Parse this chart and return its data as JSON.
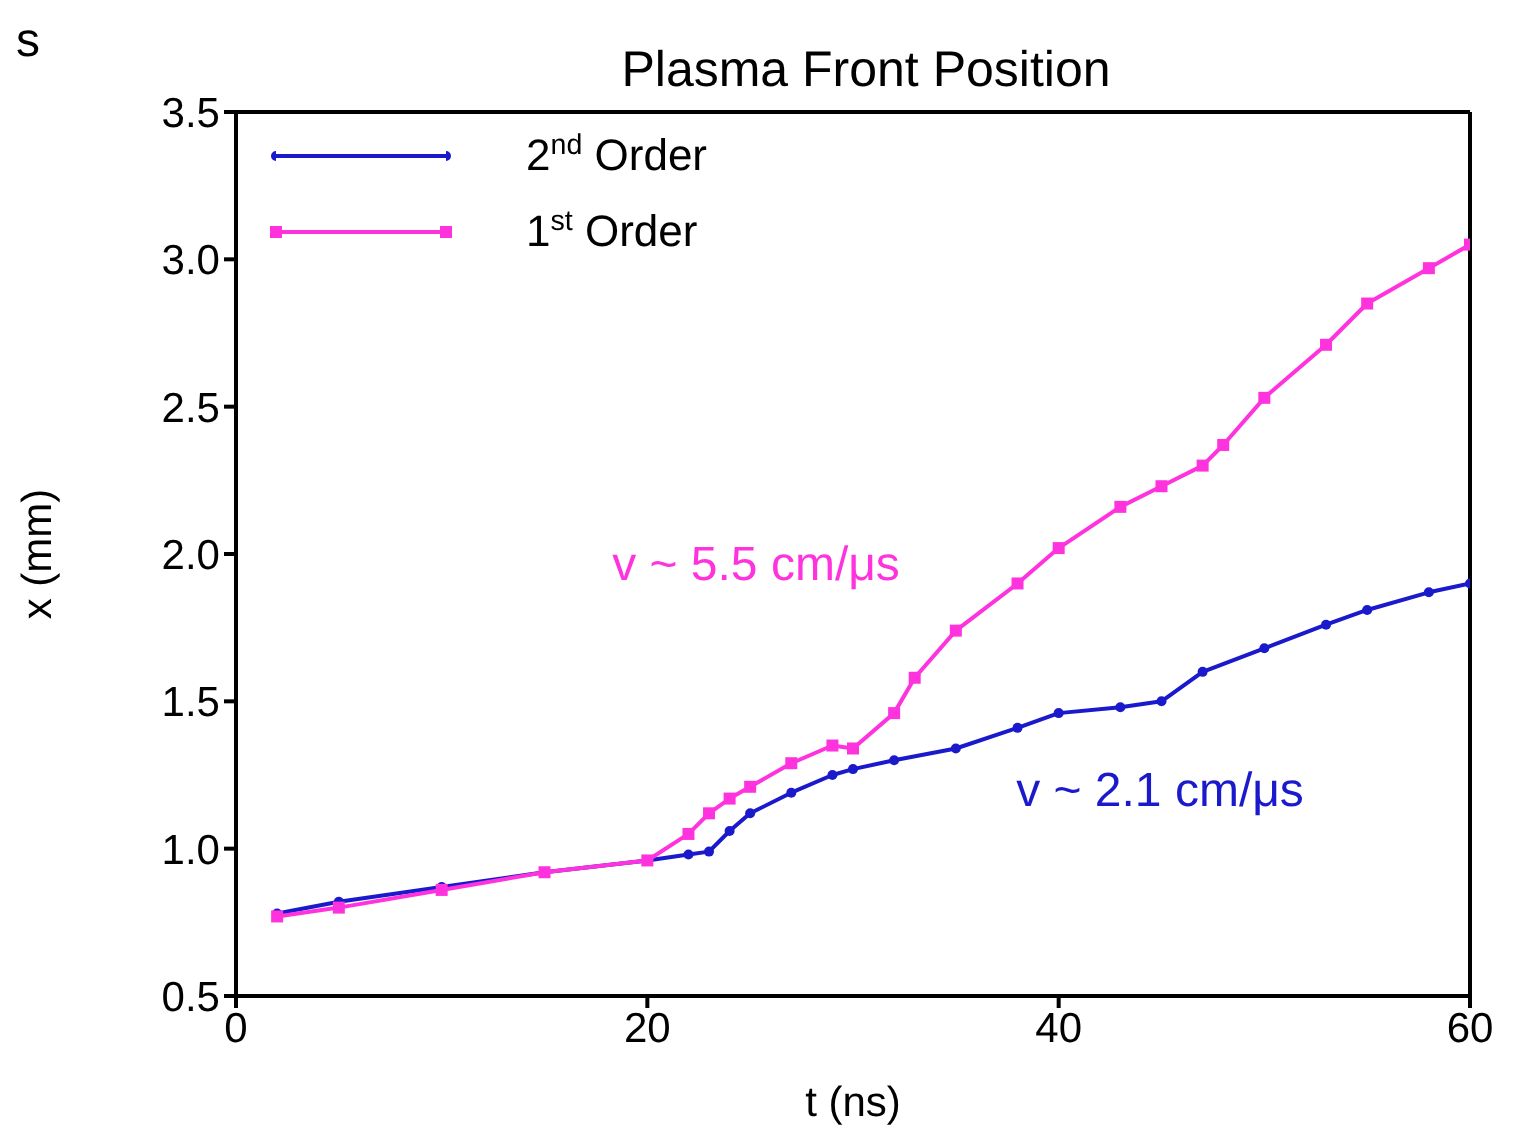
{
  "chart_data": {
    "type": "line",
    "title": "Plasma Front Position",
    "xlabel": "t (ns)",
    "ylabel": "x (mm)",
    "xlim": [
      0,
      60
    ],
    "xticks": [
      0,
      20,
      40,
      60
    ],
    "ylim": [
      0.5,
      3.5
    ],
    "yticks": [
      0.5,
      {
        "value": 1,
        "label": "1.0"
      },
      1.5,
      {
        "value": 2,
        "label": "2.0"
      },
      2.5,
      {
        "value": 3,
        "label": "3.0"
      },
      3.5
    ],
    "legend": "top left",
    "annotations": [
      "s",
      "v ~ 5.5 cm/μs",
      "v ~ 2.1 cm/μs"
    ],
    "series": [
      {
        "name": "2$^{nd}$ Order",
        "color": "#1a1acc",
        "marker": "circle",
        "x": [
          2,
          5,
          10,
          15,
          20,
          22,
          23,
          24,
          25,
          27,
          29,
          30,
          32,
          35,
          38,
          40,
          43,
          45,
          47,
          50,
          53,
          55,
          58,
          60
        ],
        "values": [
          0.78,
          0.82,
          0.87,
          0.92,
          0.96,
          0.98,
          0.99,
          1.06,
          1.12,
          1.19,
          1.25,
          1.27,
          1.3,
          1.34,
          1.41,
          1.46,
          1.48,
          1.5,
          1.6,
          1.68,
          1.76,
          1.81,
          1.87,
          1.9
        ]
      },
      {
        "name": "1$^{st}$ Order",
        "color": "#ff33dd",
        "marker": "square",
        "x": [
          2,
          5,
          10,
          15,
          20,
          22,
          23,
          24,
          25,
          27,
          29,
          30,
          32,
          33,
          35,
          38,
          40,
          43,
          45,
          47,
          48,
          50,
          53,
          55,
          58,
          60
        ],
        "values": [
          0.77,
          0.8,
          0.86,
          0.92,
          0.96,
          1.05,
          1.12,
          1.17,
          1.21,
          1.29,
          1.35,
          1.34,
          1.46,
          1.58,
          1.74,
          1.9,
          2.02,
          2.16,
          2.23,
          2.3,
          2.37,
          2.53,
          2.71,
          2.85,
          2.97,
          3.05
        ]
      }
    ]
  }
}
